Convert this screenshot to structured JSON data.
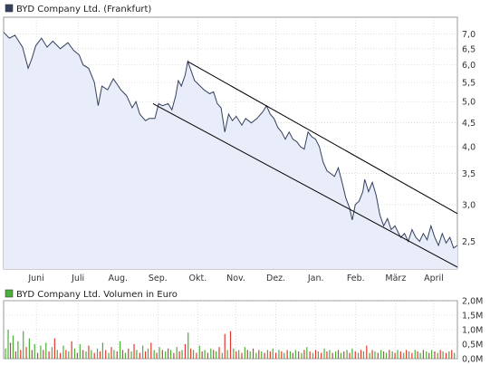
{
  "colors": {
    "price_line": "#33405e",
    "price_fill": "#e9edf9",
    "channel": "#000000",
    "grid": "#c8c8c8",
    "border": "#9a9a9a",
    "legend_price": "#33405e",
    "legend_volume": "#4caf3a",
    "volume_up": "#4caf3a",
    "volume_down": "#e03a2e"
  },
  "chart_data": [
    {
      "type": "line",
      "title": "BYD Company Ltd. (Frankfurt)",
      "legend_label": "BYD Company Ltd. (Frankfurt)",
      "x_labels": [
        "Juni",
        "Juli",
        "Aug.",
        "Sep.",
        "Okt.",
        "Nov.",
        "Dez.",
        "Jan.",
        "Feb.",
        "März",
        "April"
      ],
      "y_ticks": [
        "7,0",
        "6,5",
        "6,0",
        "5,5",
        "5,0",
        "4,5",
        "4,0",
        "3,5",
        "3,0",
        "2,5"
      ],
      "y_tick_values": [
        7.0,
        6.5,
        6.0,
        5.5,
        5.0,
        4.5,
        4.0,
        3.5,
        3.0,
        2.5
      ],
      "y_scale": "log",
      "ylim": [
        2.18,
        7.6
      ],
      "grid": true,
      "x_range": [
        0,
        12
      ],
      "series": [
        {
          "values": [
            [
              0.0,
              7.05
            ],
            [
              0.15,
              6.85
            ],
            [
              0.3,
              6.95
            ],
            [
              0.5,
              6.55
            ],
            [
              0.65,
              5.9
            ],
            [
              0.75,
              6.2
            ],
            [
              0.85,
              6.6
            ],
            [
              1.0,
              6.85
            ],
            [
              1.15,
              6.55
            ],
            [
              1.3,
              6.75
            ],
            [
              1.5,
              6.5
            ],
            [
              1.7,
              6.7
            ],
            [
              1.85,
              6.45
            ],
            [
              2.0,
              6.3
            ],
            [
              2.1,
              6.0
            ],
            [
              2.25,
              5.9
            ],
            [
              2.4,
              5.5
            ],
            [
              2.5,
              4.9
            ],
            [
              2.6,
              5.4
            ],
            [
              2.75,
              5.3
            ],
            [
              2.9,
              5.6
            ],
            [
              3.0,
              5.45
            ],
            [
              3.1,
              5.3
            ],
            [
              3.25,
              5.15
            ],
            [
              3.4,
              4.85
            ],
            [
              3.5,
              5.0
            ],
            [
              3.6,
              4.7
            ],
            [
              3.75,
              4.55
            ],
            [
              3.85,
              4.6
            ],
            [
              4.0,
              4.6
            ],
            [
              4.1,
              4.95
            ],
            [
              4.2,
              4.9
            ],
            [
              4.35,
              4.95
            ],
            [
              4.45,
              4.8
            ],
            [
              4.55,
              5.15
            ],
            [
              4.62,
              5.55
            ],
            [
              4.7,
              5.4
            ],
            [
              4.8,
              5.7
            ],
            [
              4.87,
              6.1
            ],
            [
              4.95,
              5.85
            ],
            [
              5.05,
              5.55
            ],
            [
              5.15,
              5.45
            ],
            [
              5.3,
              5.3
            ],
            [
              5.45,
              5.2
            ],
            [
              5.55,
              5.25
            ],
            [
              5.65,
              4.95
            ],
            [
              5.75,
              4.85
            ],
            [
              5.85,
              4.3
            ],
            [
              5.95,
              4.7
            ],
            [
              6.05,
              4.55
            ],
            [
              6.15,
              4.65
            ],
            [
              6.3,
              4.45
            ],
            [
              6.4,
              4.6
            ],
            [
              6.55,
              4.5
            ],
            [
              6.7,
              4.6
            ],
            [
              6.85,
              4.75
            ],
            [
              6.95,
              4.9
            ],
            [
              7.05,
              4.7
            ],
            [
              7.15,
              4.6
            ],
            [
              7.25,
              4.4
            ],
            [
              7.35,
              4.3
            ],
            [
              7.45,
              4.15
            ],
            [
              7.55,
              4.3
            ],
            [
              7.65,
              4.15
            ],
            [
              7.75,
              4.1
            ],
            [
              7.85,
              4.0
            ],
            [
              7.95,
              3.95
            ],
            [
              8.05,
              4.3
            ],
            [
              8.15,
              4.2
            ],
            [
              8.25,
              4.15
            ],
            [
              8.35,
              4.0
            ],
            [
              8.45,
              3.7
            ],
            [
              8.55,
              3.55
            ],
            [
              8.65,
              3.5
            ],
            [
              8.75,
              3.45
            ],
            [
              8.85,
              3.6
            ],
            [
              8.95,
              3.35
            ],
            [
              9.05,
              3.1
            ],
            [
              9.15,
              2.95
            ],
            [
              9.22,
              2.78
            ],
            [
              9.3,
              3.0
            ],
            [
              9.4,
              3.05
            ],
            [
              9.5,
              3.2
            ],
            [
              9.55,
              3.4
            ],
            [
              9.65,
              3.2
            ],
            [
              9.75,
              3.35
            ],
            [
              9.85,
              3.15
            ],
            [
              9.95,
              2.85
            ],
            [
              10.05,
              2.7
            ],
            [
              10.15,
              2.8
            ],
            [
              10.25,
              2.65
            ],
            [
              10.35,
              2.7
            ],
            [
              10.5,
              2.55
            ],
            [
              10.6,
              2.6
            ],
            [
              10.7,
              2.5
            ],
            [
              10.8,
              2.65
            ],
            [
              10.9,
              2.55
            ],
            [
              11.0,
              2.5
            ],
            [
              11.1,
              2.6
            ],
            [
              11.2,
              2.52
            ],
            [
              11.3,
              2.7
            ],
            [
              11.4,
              2.55
            ],
            [
              11.5,
              2.45
            ],
            [
              11.6,
              2.6
            ],
            [
              11.7,
              2.48
            ],
            [
              11.8,
              2.55
            ],
            [
              11.9,
              2.42
            ],
            [
              12.0,
              2.45
            ]
          ]
        }
      ],
      "channel_lines": [
        {
          "x": [
            4.87,
            12.0
          ],
          "y": [
            6.1,
            2.87
          ]
        },
        {
          "x": [
            3.95,
            12.0
          ],
          "y": [
            4.95,
            2.2
          ]
        }
      ]
    },
    {
      "type": "bar",
      "title": "BYD Company Ltd. Volumen in Euro",
      "legend_label": "BYD Company Ltd. Volumen in Euro",
      "y_ticks": [
        "2,0M",
        "1,5M",
        "1,0M",
        "0,5M",
        "0,0M"
      ],
      "y_tick_values": [
        2.0,
        1.5,
        1.0,
        0.5,
        0.0
      ],
      "ylim": [
        0,
        2.0
      ],
      "unit": "M",
      "grid": true,
      "bars": [
        [
          0.05,
          0.35,
          1
        ],
        [
          0.12,
          1.0,
          1
        ],
        [
          0.18,
          0.55,
          0
        ],
        [
          0.25,
          0.8,
          1
        ],
        [
          0.32,
          0.25,
          0
        ],
        [
          0.38,
          0.6,
          1
        ],
        [
          0.45,
          0.3,
          0
        ],
        [
          0.52,
          0.95,
          1
        ],
        [
          0.6,
          0.4,
          0
        ],
        [
          0.68,
          0.7,
          1
        ],
        [
          0.75,
          0.3,
          0
        ],
        [
          0.82,
          0.5,
          1
        ],
        [
          0.9,
          0.2,
          0
        ],
        [
          0.98,
          0.45,
          1
        ],
        [
          1.05,
          0.3,
          0
        ],
        [
          1.12,
          0.55,
          1
        ],
        [
          1.2,
          0.25,
          0
        ],
        [
          1.28,
          0.4,
          1
        ],
        [
          1.35,
          0.7,
          0
        ],
        [
          1.42,
          0.3,
          1
        ],
        [
          1.5,
          0.2,
          0
        ],
        [
          1.58,
          0.45,
          1
        ],
        [
          1.65,
          0.3,
          0
        ],
        [
          1.72,
          0.25,
          1
        ],
        [
          1.8,
          0.6,
          0
        ],
        [
          1.88,
          0.35,
          1
        ],
        [
          1.95,
          0.2,
          0
        ],
        [
          2.02,
          0.5,
          1
        ],
        [
          2.1,
          0.3,
          0
        ],
        [
          2.18,
          0.25,
          1
        ],
        [
          2.25,
          0.45,
          0
        ],
        [
          2.32,
          0.3,
          1
        ],
        [
          2.4,
          0.2,
          0
        ],
        [
          2.48,
          0.35,
          1
        ],
        [
          2.55,
          0.25,
          0
        ],
        [
          2.62,
          0.55,
          1
        ],
        [
          2.7,
          0.3,
          0
        ],
        [
          2.78,
          0.2,
          1
        ],
        [
          2.85,
          0.4,
          0
        ],
        [
          2.92,
          0.3,
          1
        ],
        [
          3.0,
          0.25,
          0
        ],
        [
          3.08,
          0.6,
          1
        ],
        [
          3.15,
          0.3,
          0
        ],
        [
          3.22,
          0.2,
          1
        ],
        [
          3.3,
          0.35,
          0
        ],
        [
          3.38,
          0.25,
          1
        ],
        [
          3.45,
          0.5,
          0
        ],
        [
          3.52,
          0.3,
          1
        ],
        [
          3.6,
          0.2,
          0
        ],
        [
          3.68,
          0.45,
          1
        ],
        [
          3.75,
          0.25,
          0
        ],
        [
          3.82,
          0.35,
          1
        ],
        [
          3.9,
          0.55,
          0
        ],
        [
          3.98,
          0.3,
          1
        ],
        [
          4.05,
          0.2,
          0
        ],
        [
          4.12,
          0.4,
          1
        ],
        [
          4.2,
          0.3,
          0
        ],
        [
          4.28,
          0.25,
          1
        ],
        [
          4.35,
          0.35,
          0
        ],
        [
          4.42,
          0.3,
          1
        ],
        [
          4.5,
          0.2,
          0
        ],
        [
          4.58,
          0.4,
          1
        ],
        [
          4.65,
          0.25,
          0
        ],
        [
          4.72,
          0.3,
          1
        ],
        [
          4.8,
          0.5,
          0
        ],
        [
          4.88,
          0.9,
          1
        ],
        [
          4.95,
          0.35,
          0
        ],
        [
          5.02,
          0.3,
          1
        ],
        [
          5.1,
          0.2,
          0
        ],
        [
          5.18,
          0.45,
          1
        ],
        [
          5.25,
          0.25,
          0
        ],
        [
          5.32,
          0.3,
          1
        ],
        [
          5.4,
          0.2,
          0
        ],
        [
          5.48,
          0.35,
          1
        ],
        [
          5.55,
          0.3,
          0
        ],
        [
          5.62,
          0.25,
          1
        ],
        [
          5.7,
          0.4,
          0
        ],
        [
          5.78,
          0.2,
          1
        ],
        [
          5.85,
          0.85,
          0
        ],
        [
          5.92,
          0.3,
          1
        ],
        [
          6.0,
          0.95,
          0
        ],
        [
          6.08,
          0.35,
          1
        ],
        [
          6.15,
          0.25,
          0
        ],
        [
          6.22,
          0.3,
          1
        ],
        [
          6.3,
          0.2,
          0
        ],
        [
          6.38,
          0.4,
          1
        ],
        [
          6.45,
          0.3,
          0
        ],
        [
          6.52,
          0.25,
          1
        ],
        [
          6.6,
          0.35,
          0
        ],
        [
          6.68,
          0.2,
          1
        ],
        [
          6.75,
          0.3,
          0
        ],
        [
          6.82,
          0.25,
          1
        ],
        [
          6.9,
          0.2,
          0
        ],
        [
          6.98,
          0.3,
          1
        ],
        [
          7.05,
          0.25,
          0
        ],
        [
          7.12,
          0.35,
          1
        ],
        [
          7.2,
          0.2,
          0
        ],
        [
          7.28,
          0.3,
          1
        ],
        [
          7.35,
          0.25,
          0
        ],
        [
          7.42,
          0.2,
          1
        ],
        [
          7.5,
          0.3,
          0
        ],
        [
          7.58,
          0.25,
          1
        ],
        [
          7.65,
          0.2,
          0
        ],
        [
          7.72,
          0.3,
          1
        ],
        [
          7.8,
          0.25,
          0
        ],
        [
          7.88,
          0.2,
          1
        ],
        [
          7.95,
          0.3,
          0
        ],
        [
          8.02,
          0.4,
          1
        ],
        [
          8.1,
          0.25,
          0
        ],
        [
          8.18,
          0.2,
          1
        ],
        [
          8.25,
          0.3,
          0
        ],
        [
          8.32,
          0.25,
          1
        ],
        [
          8.4,
          0.2,
          0
        ],
        [
          8.48,
          0.35,
          1
        ],
        [
          8.55,
          0.25,
          0
        ],
        [
          8.62,
          0.3,
          1
        ],
        [
          8.7,
          0.2,
          0
        ],
        [
          8.78,
          0.25,
          1
        ],
        [
          8.85,
          0.3,
          0
        ],
        [
          8.92,
          0.2,
          1
        ],
        [
          9.0,
          0.25,
          0
        ],
        [
          9.08,
          0.3,
          1
        ],
        [
          9.15,
          0.2,
          0
        ],
        [
          9.22,
          0.35,
          1
        ],
        [
          9.3,
          0.25,
          0
        ],
        [
          9.38,
          0.2,
          1
        ],
        [
          9.45,
          0.3,
          0
        ],
        [
          9.52,
          0.25,
          1
        ],
        [
          9.6,
          0.45,
          0
        ],
        [
          9.68,
          0.2,
          1
        ],
        [
          9.75,
          0.3,
          0
        ],
        [
          9.82,
          0.25,
          1
        ],
        [
          9.9,
          0.2,
          0
        ],
        [
          9.98,
          0.3,
          1
        ],
        [
          10.05,
          0.25,
          0
        ],
        [
          10.12,
          0.2,
          1
        ],
        [
          10.2,
          0.3,
          0
        ],
        [
          10.28,
          0.25,
          1
        ],
        [
          10.35,
          0.2,
          0
        ],
        [
          10.42,
          0.3,
          1
        ],
        [
          10.5,
          0.25,
          0
        ],
        [
          10.58,
          0.2,
          1
        ],
        [
          10.65,
          0.3,
          0
        ],
        [
          10.72,
          0.25,
          1
        ],
        [
          10.8,
          0.2,
          0
        ],
        [
          10.88,
          0.3,
          1
        ],
        [
          10.95,
          0.25,
          0
        ],
        [
          11.02,
          0.2,
          1
        ],
        [
          11.1,
          0.3,
          0
        ],
        [
          11.18,
          0.25,
          1
        ],
        [
          11.25,
          0.2,
          0
        ],
        [
          11.32,
          0.3,
          1
        ],
        [
          11.4,
          0.25,
          0
        ],
        [
          11.48,
          0.2,
          1
        ],
        [
          11.55,
          0.3,
          0
        ],
        [
          11.62,
          0.25,
          1
        ],
        [
          11.7,
          0.2,
          0
        ],
        [
          11.78,
          0.25,
          1
        ],
        [
          11.85,
          0.3,
          0
        ],
        [
          11.92,
          0.2,
          1
        ]
      ]
    }
  ]
}
